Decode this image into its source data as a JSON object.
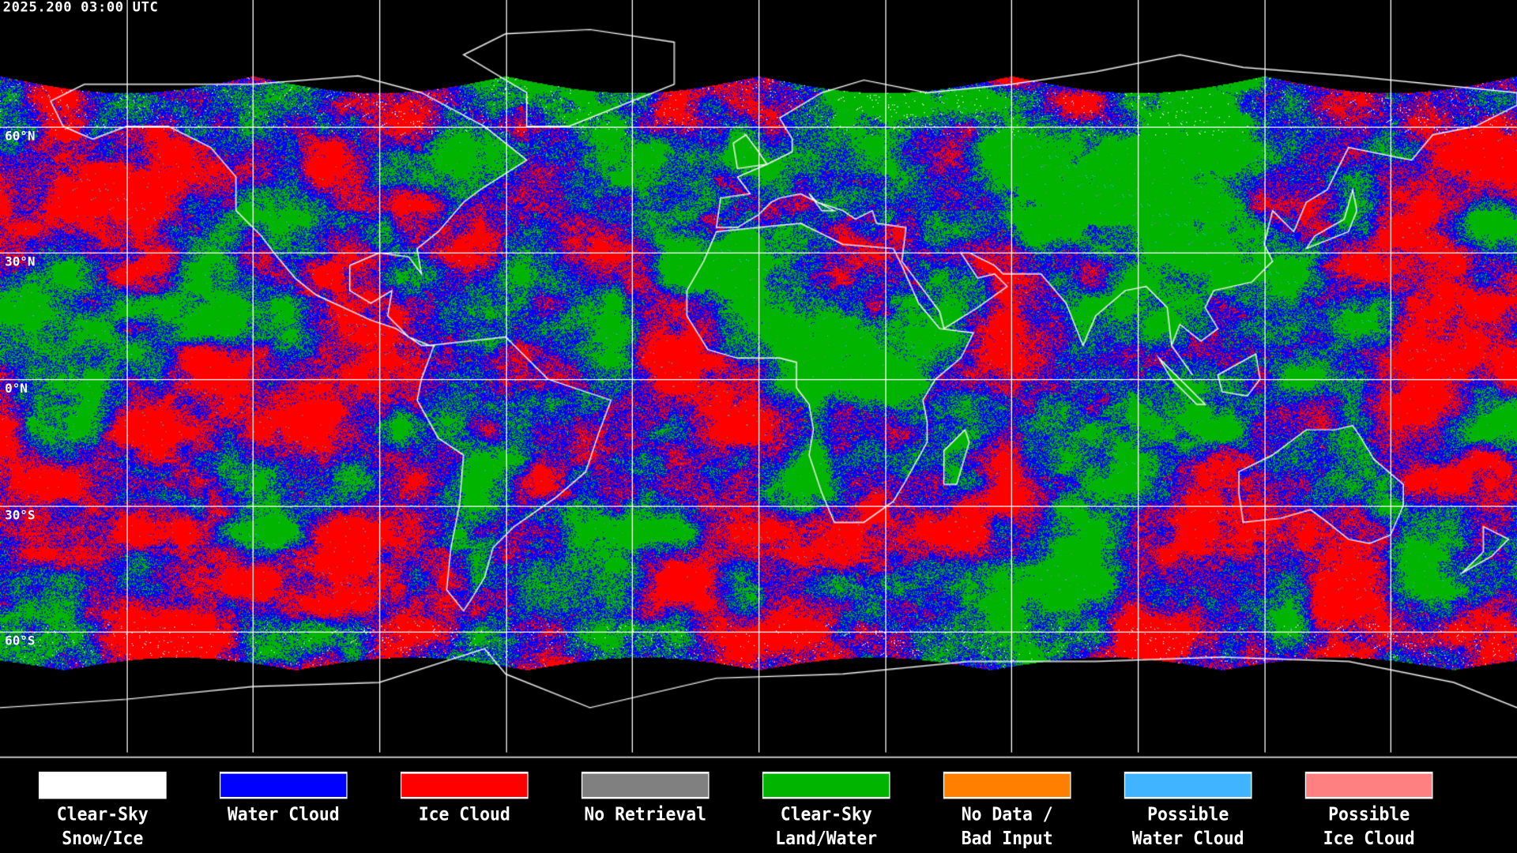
{
  "header": {
    "title": "2025.200 03:00 UTC"
  },
  "map": {
    "projection": "equirectangular",
    "lat_labels": [
      {
        "lat": 60,
        "label": "60°N"
      },
      {
        "lat": 30,
        "label": "30°N"
      },
      {
        "lat": 0,
        "label": "0°N"
      },
      {
        "lat": -30,
        "label": "30°S"
      },
      {
        "lat": -60,
        "label": "60°S"
      }
    ]
  },
  "legend": {
    "items": [
      {
        "line1": "Clear-Sky",
        "line2": "Snow/Ice",
        "color": "#ffffff"
      },
      {
        "line1": "Water Cloud",
        "line2": "",
        "color": "#0000ff"
      },
      {
        "line1": "Ice Cloud",
        "line2": "",
        "color": "#ff0000"
      },
      {
        "line1": "No Retrieval",
        "line2": "",
        "color": "#808080"
      },
      {
        "line1": "Clear-Sky",
        "line2": "Land/Water",
        "color": "#00b400"
      },
      {
        "line1": "No Data /",
        "line2": "Bad Input",
        "color": "#ff8000"
      },
      {
        "line1": "Possible",
        "line2": "Water Cloud",
        "color": "#40b4ff"
      },
      {
        "line1": "Possible",
        "line2": "Ice Cloud",
        "color": "#ff8080"
      }
    ]
  }
}
